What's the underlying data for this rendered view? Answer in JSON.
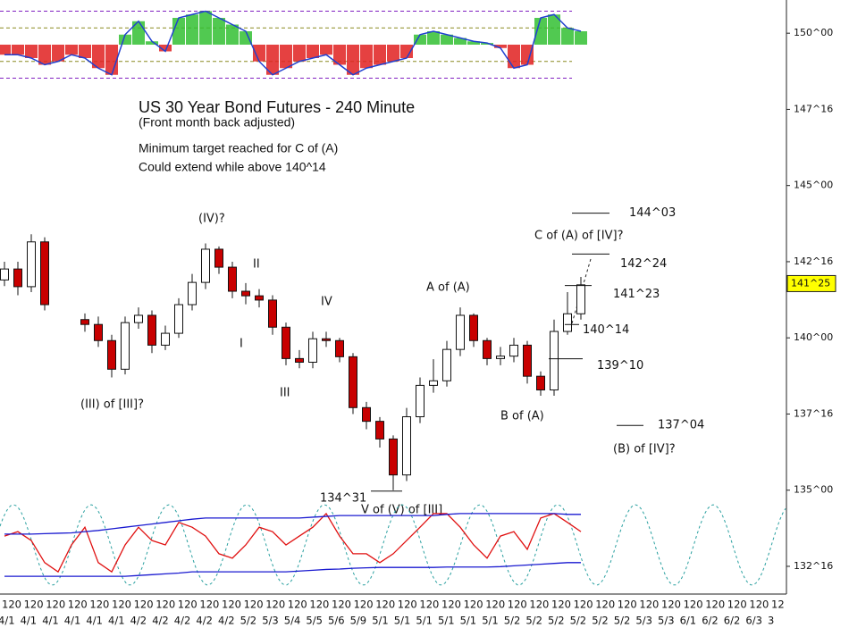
{
  "chart_data": [
    {
      "type": "candlestick",
      "title": "US 30 Year Bond Futures - 240 Minute",
      "subtitle": "(Front month back adjusted)",
      "notes": [
        "Minimum target reached for C of (A)",
        "Could extend while above 140^14"
      ],
      "annotations": [
        "(IV)?",
        "II",
        "I",
        "IV",
        "III",
        "(III) of [III]?",
        "A of (A)",
        "B of (A)",
        "C of (A) of [IV]?",
        "V of (V) of [III]",
        "(B) of [IV]?"
      ],
      "levels": [
        {
          "value": 144.09375,
          "label": "144^03"
        },
        {
          "value": 142.75,
          "label": "142^24"
        },
        {
          "value": 141.71875,
          "label": "141^23"
        },
        {
          "value": 140.4375,
          "label": "140^14"
        },
        {
          "value": 139.3125,
          "label": "139^10"
        },
        {
          "value": 137.125,
          "label": "137^04"
        },
        {
          "value": 134.96875,
          "label": "134^31"
        }
      ],
      "open": [
        141.9,
        142.26,
        141.68,
        143.15,
        null,
        null,
        140.6,
        140.44,
        139.91,
        138.97,
        140.5,
        140.74,
        139.76,
        140.15,
        141.09,
        141.82,
        142.91,
        142.32,
        141.53,
        141.38,
        141.24,
        140.35,
        139.32,
        139.2,
        139.97,
        139.91,
        139.38,
        137.71,
        137.26,
        136.68,
        135.5,
        137.41,
        138.44,
        138.59,
        139.62,
        140.74,
        139.91,
        139.32,
        139.4,
        139.76,
        138.74,
        138.29,
        140.21,
        140.79
      ],
      "high": [
        142.5,
        142.5,
        143.4,
        143.3,
        null,
        null,
        140.8,
        140.7,
        140.1,
        140.7,
        141.0,
        140.9,
        140.4,
        141.3,
        142.1,
        143.1,
        143.0,
        142.5,
        141.8,
        141.6,
        141.4,
        140.5,
        139.6,
        140.2,
        140.2,
        140.0,
        139.5,
        137.9,
        137.4,
        136.8,
        137.7,
        138.7,
        139.3,
        139.9,
        141.0,
        140.8,
        140.0,
        139.7,
        140.0,
        139.9,
        138.9,
        140.6,
        141.5,
        142.0
      ],
      "low": [
        141.7,
        141.4,
        141.5,
        140.9,
        null,
        null,
        140.2,
        139.7,
        138.7,
        138.8,
        140.3,
        139.5,
        139.6,
        140.0,
        140.9,
        141.6,
        142.1,
        141.3,
        141.1,
        141.0,
        140.1,
        139.1,
        139.0,
        139.0,
        139.7,
        139.2,
        137.5,
        137.0,
        136.4,
        135.0,
        135.3,
        137.2,
        138.2,
        138.4,
        139.4,
        139.7,
        139.1,
        139.1,
        139.2,
        138.5,
        138.1,
        138.1,
        140.1,
        140.6
      ],
      "close": [
        142.26,
        141.68,
        143.15,
        141.09,
        null,
        null,
        140.44,
        139.91,
        138.97,
        140.5,
        140.74,
        139.76,
        140.15,
        141.09,
        141.82,
        142.91,
        142.32,
        141.53,
        141.38,
        141.24,
        140.35,
        139.32,
        139.2,
        139.97,
        139.91,
        139.38,
        137.71,
        137.26,
        136.68,
        135.5,
        137.41,
        138.44,
        138.59,
        139.62,
        140.74,
        139.91,
        139.32,
        139.4,
        139.76,
        138.74,
        138.29,
        140.21,
        140.79,
        141.74
      ],
      "up_color": "#ffffff",
      "down_color": "#c80000",
      "ylim": [
        131.59,
        151.09
      ],
      "yticks": [
        {
          "value": 150,
          "label": "150^00"
        },
        {
          "value": 147.5,
          "label": "147^16"
        },
        {
          "value": 145,
          "label": "145^00"
        },
        {
          "value": 142.5,
          "label": "142^16"
        },
        {
          "value": 140,
          "label": "140^00"
        },
        {
          "value": 137.5,
          "label": "137^16"
        },
        {
          "value": 135,
          "label": "135^00"
        },
        {
          "value": 132.5,
          "label": "132^16"
        }
      ],
      "last_price": {
        "value": 141.78125,
        "label": "141^25"
      },
      "x_labels_top": [
        "120",
        "120",
        "120",
        "120",
        "120",
        "120",
        "120",
        "120",
        "120",
        "120",
        "120",
        "120",
        "120",
        "120",
        "120",
        "120",
        "120",
        "120",
        "120",
        "120",
        "120",
        "120",
        "120",
        "120",
        "120",
        "120",
        "120",
        "120",
        "120",
        "120",
        "120",
        "120",
        "120",
        "120",
        "120",
        "12"
      ],
      "x_labels_bottom": [
        "4/1",
        "4/1",
        "4/1",
        "4/1",
        "4/1",
        "4/1",
        "4/2",
        "4/2",
        "4/2",
        "4/2",
        "4/2",
        "5/2",
        "5/3",
        "5/4",
        "5/5",
        "5/6",
        "5/9",
        "5/1",
        "5/1",
        "5/1",
        "5/1",
        "5/1",
        "5/1",
        "5/2",
        "5/2",
        "5/2",
        "5/2",
        "5/2",
        "5/2",
        "5/3",
        "5/3",
        "6/1",
        "6/2",
        "6/2",
        "6/3",
        "3"
      ]
    },
    {
      "type": "bar",
      "values": [
        -0.3,
        -0.3,
        -0.4,
        -0.6,
        -0.5,
        -0.3,
        -0.4,
        -0.7,
        -0.9,
        0.3,
        0.7,
        0.1,
        -0.2,
        0.8,
        0.9,
        1.0,
        0.8,
        0.6,
        0.4,
        -0.5,
        -0.9,
        -0.7,
        -0.5,
        -0.4,
        -0.3,
        -0.6,
        -0.9,
        -0.7,
        -0.6,
        -0.5,
        -0.4,
        0.3,
        0.4,
        0.3,
        0.2,
        0.1,
        0.05,
        -0.1,
        -0.7,
        -0.6,
        0.8,
        0.9,
        0.5,
        0.4
      ],
      "pos_color": "#33c033",
      "neg_color": "#e02020",
      "line_color": "#2040d0",
      "ylim": [
        -1.2,
        1.2
      ],
      "levels": [
        1,
        0.5,
        -0.5,
        -1
      ]
    },
    {
      "type": "line",
      "series": [
        {
          "color": "#e01010",
          "values": [
            0.22,
            0.33,
            0.11,
            -0.44,
            -0.67,
            0,
            0.44,
            -0.44,
            -0.67,
            0,
            0.44,
            0.11,
            0,
            0.56,
            0.44,
            0.22,
            -0.22,
            -0.33,
            0,
            0.44,
            0.33,
            0,
            0.22,
            0.44,
            0.78,
            0.22,
            -0.22,
            -0.22,
            -0.44,
            -0.22,
            0.11,
            0.44,
            0.78,
            0.78,
            0.44,
            0,
            -0.33,
            0.22,
            0.33,
            -0.11,
            0.67,
            0.78,
            0.56,
            0.33
          ]
        },
        {
          "color": "#1a1ad0",
          "values": [
            0.27,
            0.27,
            0.27,
            0.28,
            0.29,
            0.3,
            0.33,
            0.36,
            0.4,
            0.44,
            0.48,
            0.52,
            0.56,
            0.6,
            0.64,
            0.67,
            0.67,
            0.67,
            0.67,
            0.67,
            0.67,
            0.67,
            0.67,
            0.69,
            0.71,
            0.73,
            0.73,
            0.73,
            0.73,
            0.73,
            0.73,
            0.73,
            0.73,
            0.76,
            0.78,
            0.78,
            0.78,
            0.78,
            0.78,
            0.78,
            0.78,
            0.78,
            0.76,
            0.76
          ]
        },
        {
          "color": "#1a1ad0",
          "values": [
            -0.78,
            -0.78,
            -0.78,
            -0.78,
            -0.78,
            -0.78,
            -0.78,
            -0.78,
            -0.78,
            -0.78,
            -0.76,
            -0.74,
            -0.72,
            -0.7,
            -0.67,
            -0.67,
            -0.67,
            -0.67,
            -0.67,
            -0.67,
            -0.67,
            -0.67,
            -0.65,
            -0.63,
            -0.61,
            -0.6,
            -0.58,
            -0.57,
            -0.56,
            -0.56,
            -0.56,
            -0.56,
            -0.56,
            -0.55,
            -0.55,
            -0.55,
            -0.55,
            -0.54,
            -0.52,
            -0.5,
            -0.48,
            -0.46,
            -0.44,
            -0.44
          ]
        }
      ],
      "cycle": {
        "period": 5.8,
        "phase": -0.78,
        "color": "#2aa0a0"
      },
      "ylim": [
        -1.2,
        1.2
      ]
    }
  ]
}
